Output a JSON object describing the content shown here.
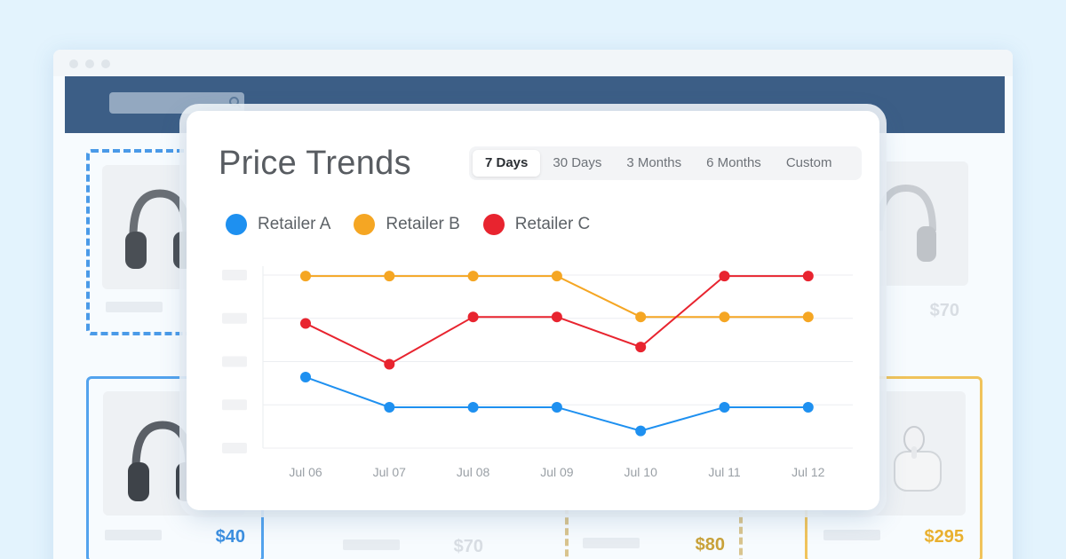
{
  "modal": {
    "title": "Price Trends",
    "tabs": [
      {
        "label": "7 Days",
        "active": true
      },
      {
        "label": "30 Days",
        "active": false
      },
      {
        "label": "3 Months",
        "active": false
      },
      {
        "label": "6 Months",
        "active": false
      },
      {
        "label": "Custom",
        "active": false
      }
    ]
  },
  "background": {
    "prices": {
      "card_left_bottom": "$40",
      "card_center_left": "$70",
      "card_center_right": "$80",
      "card_right_bottom": "$295",
      "card_right_top": "$70"
    },
    "colors": {
      "navbar": "#3c5e86",
      "price_blue": "#3c8fe0",
      "price_gold": "#e9b02f",
      "price_muted": "#d8dde3"
    }
  },
  "chart_data": {
    "type": "line",
    "categories": [
      "Jul 06",
      "Jul 07",
      "Jul 08",
      "Jul 09",
      "Jul 10",
      "Jul 11",
      "Jul 12"
    ],
    "ylim": [
      0,
      5
    ],
    "grid": true,
    "legend_position": "top-left",
    "series": [
      {
        "name": "Retailer A",
        "color": "#1e90f0",
        "values": [
          1.65,
          0.95,
          0.95,
          0.95,
          0.4,
          0.95,
          0.95
        ]
      },
      {
        "name": "Retailer B",
        "color": "#f5a623",
        "values": [
          4.0,
          4.0,
          4.0,
          4.0,
          3.05,
          3.05,
          3.05
        ]
      },
      {
        "name": "Retailer C",
        "color": "#e8242f",
        "values": [
          2.9,
          1.95,
          3.05,
          3.05,
          2.35,
          4.0,
          4.0
        ]
      }
    ]
  }
}
